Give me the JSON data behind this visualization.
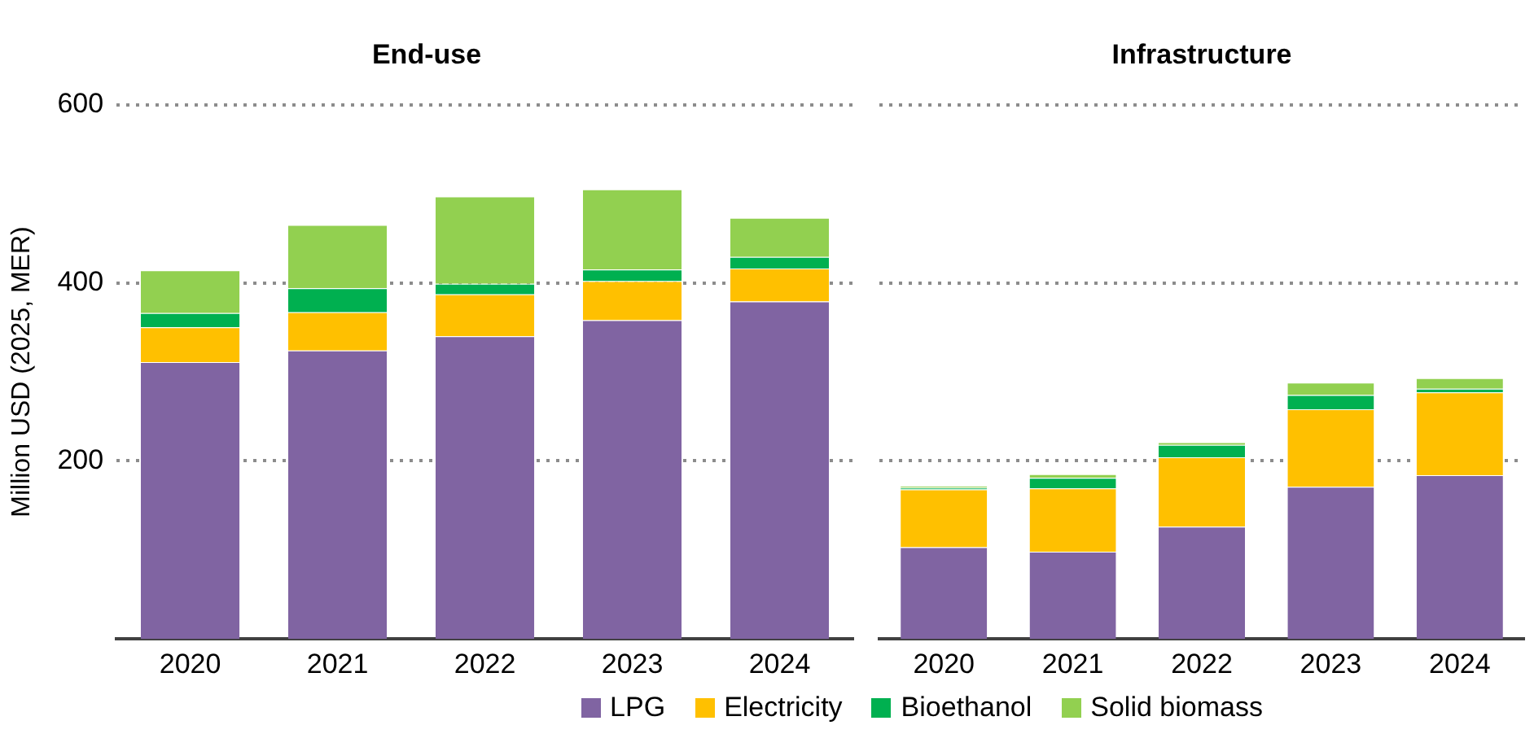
{
  "chart_data": [
    {
      "type": "bar",
      "title": "End-use",
      "ylabel": "Million USD (2025, MER)",
      "categories": [
        "2020",
        "2021",
        "2022",
        "2023",
        "2024"
      ],
      "stacked": true,
      "ylim": [
        0,
        600
      ],
      "yticks": [
        200,
        400,
        600
      ],
      "grid": "y",
      "legend": "bottom",
      "series": [
        {
          "name": "LPG",
          "color": "#8064a2",
          "values": [
            311,
            324,
            340,
            358,
            379
          ]
        },
        {
          "name": "Electricity",
          "color": "#ffc000",
          "values": [
            39,
            43,
            47,
            44,
            37
          ]
        },
        {
          "name": "Bioethanol",
          "color": "#00b050",
          "values": [
            16,
            27,
            12,
            13,
            13
          ]
        },
        {
          "name": "Solid biomass",
          "color": "#92d050",
          "values": [
            48,
            71,
            98,
            90,
            44
          ]
        }
      ]
    },
    {
      "type": "bar",
      "title": "Infrastructure",
      "categories": [
        "2020",
        "2021",
        "2022",
        "2023",
        "2024"
      ],
      "stacked": true,
      "ylim": [
        0,
        600
      ],
      "yticks": [
        200,
        400,
        600
      ],
      "grid": "y",
      "tick_labels": "x",
      "series": [
        {
          "color": "#8064a2",
          "values": [
            103,
            98,
            126,
            171,
            184
          ]
        },
        {
          "color": "#ffc000",
          "values": [
            65,
            71,
            78,
            87,
            93
          ]
        },
        {
          "color": "#00b050",
          "values": [
            2,
            12,
            14,
            16,
            4
          ]
        },
        {
          "color": "#92d050",
          "values": [
            2,
            4,
            3,
            14,
            12
          ]
        }
      ]
    }
  ]
}
